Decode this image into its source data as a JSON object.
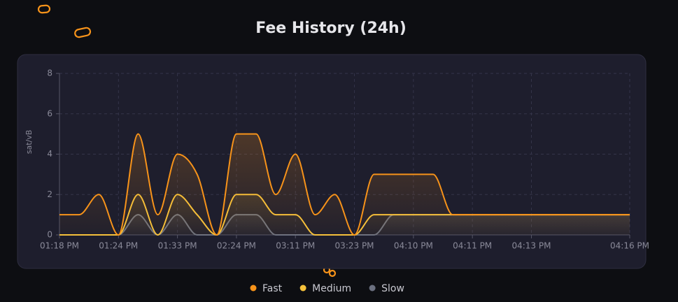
{
  "chart_data": {
    "type": "line",
    "title": "Fee History (24h)",
    "y_label": "sat/vB",
    "categories": [
      "01:18 PM",
      null,
      null,
      "01:24 PM",
      null,
      null,
      "01:33 PM",
      null,
      null,
      "02:24 PM",
      null,
      null,
      "03:11 PM",
      null,
      null,
      "03:23 PM",
      null,
      null,
      "04:10 PM",
      null,
      null,
      "04:11 PM",
      null,
      null,
      "04:13 PM",
      null,
      null,
      null,
      null,
      "04:16 PM"
    ],
    "series": [
      {
        "name": "Fast",
        "color": "#f7931a",
        "values": [
          1,
          1,
          2,
          0,
          5,
          1,
          4,
          3,
          0,
          5,
          5,
          2,
          4,
          1,
          2,
          0,
          3,
          3,
          3,
          3,
          1,
          1,
          1,
          1,
          1,
          1,
          1,
          1,
          1,
          1
        ]
      },
      {
        "name": "Medium",
        "color": "#f5c13b",
        "values": [
          0,
          0,
          0,
          0,
          2,
          0,
          2,
          1,
          0,
          2,
          2,
          1,
          1,
          0,
          0,
          0,
          1,
          1,
          1,
          1,
          1,
          1,
          1,
          1,
          1,
          1,
          1,
          1,
          1,
          1
        ]
      },
      {
        "name": "Slow",
        "color": "#6b7080",
        "values": [
          0,
          0,
          0,
          0,
          1,
          0,
          1,
          0,
          0,
          1,
          1,
          0,
          0,
          0,
          0,
          0,
          0,
          1,
          1,
          1,
          1,
          1,
          1,
          1,
          1,
          1,
          1,
          1,
          1,
          1
        ]
      }
    ],
    "ylim": [
      0,
      8
    ],
    "yticks": [
      0,
      2,
      4,
      6,
      8
    ],
    "grid": true,
    "legend": "bottom"
  }
}
